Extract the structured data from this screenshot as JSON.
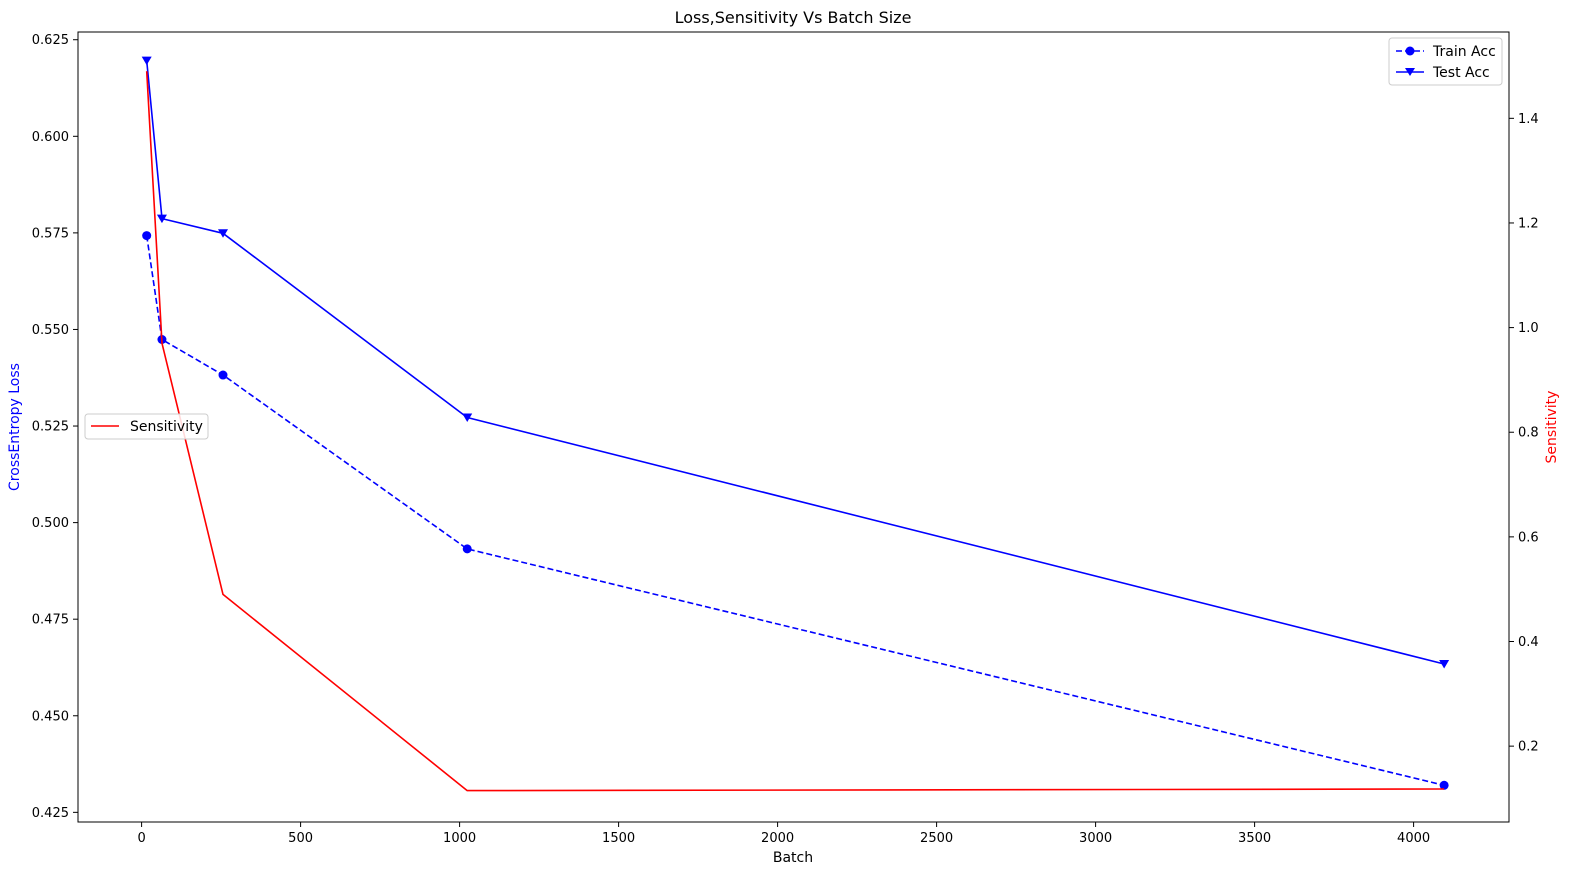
{
  "chart_data": {
    "type": "line",
    "title": "Loss,Sensitivity Vs Batch Size",
    "xlabel": "Batch",
    "ylabel": "CrossEntropy Loss",
    "y2label": "Sensitivity",
    "xlim": [
      -200,
      4300
    ],
    "ylim": [
      0.4225,
      0.627
    ],
    "y2lim": [
      0.055,
      1.565
    ],
    "xticks": [
      "0",
      "500",
      "1000",
      "1500",
      "2000",
      "2500",
      "3000",
      "3500",
      "4000"
    ],
    "xtick_values": [
      0,
      500,
      1000,
      1500,
      2000,
      2500,
      3000,
      3500,
      4000
    ],
    "yticks": [
      "0.425",
      "0.450",
      "0.475",
      "0.500",
      "0.525",
      "0.550",
      "0.575",
      "0.600",
      "0.625"
    ],
    "ytick_values": [
      0.425,
      0.45,
      0.475,
      0.5,
      0.525,
      0.55,
      0.575,
      0.6,
      0.625
    ],
    "y2ticks": [
      "0.2",
      "0.4",
      "0.6",
      "0.8",
      "1.0",
      "1.2",
      "1.4"
    ],
    "y2tick_values": [
      0.2,
      0.4,
      0.6,
      0.8,
      1.0,
      1.2,
      1.4
    ],
    "grid": false,
    "x": [
      16,
      64,
      256,
      1024,
      4096
    ],
    "series": [
      {
        "name": "Train Acc",
        "axis": "left",
        "style": "dashed",
        "marker": "circle",
        "color": "#0000ff",
        "values": [
          0.5743,
          0.5474,
          0.5382,
          0.4932,
          0.432
        ]
      },
      {
        "name": "Test Acc",
        "axis": "left",
        "style": "solid",
        "marker": "triangle-down",
        "color": "#0000ff",
        "values": [
          0.6196,
          0.5787,
          0.5749,
          0.5272,
          0.4634
        ]
      },
      {
        "name": "Sensitivity",
        "axis": "right",
        "style": "solid",
        "marker": "none",
        "color": "#ff0000",
        "values": [
          1.49,
          0.97,
          0.49,
          0.115,
          0.118
        ]
      }
    ],
    "legend_left_axis": "top-right",
    "legend_right_axis": "center-left"
  }
}
